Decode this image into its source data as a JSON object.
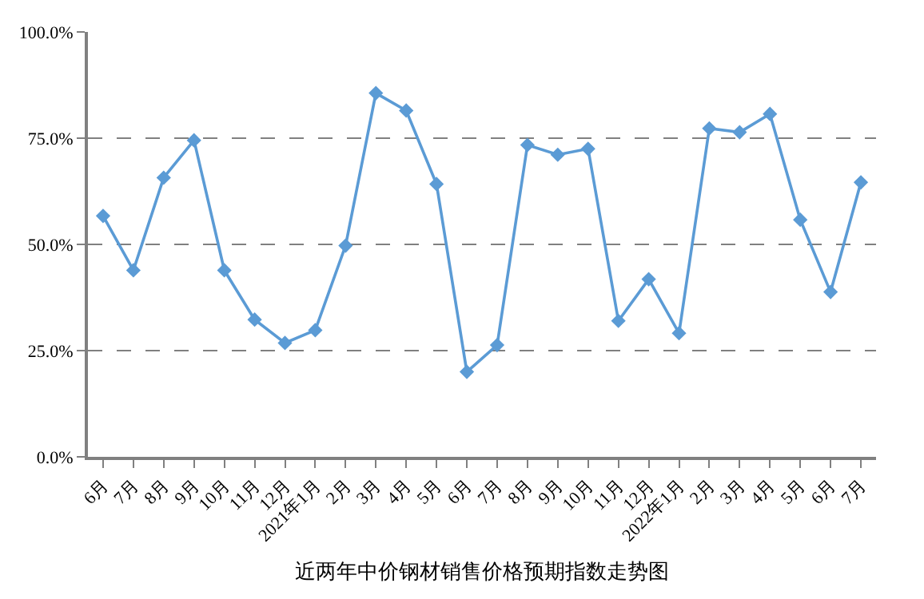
{
  "chart_data": {
    "type": "line",
    "xlabel": "近两年中价钢材销售价格预期指数走势图",
    "categories": [
      "6月",
      "7月",
      "8月",
      "9月",
      "10月",
      "11月",
      "12月",
      "2021年1月",
      "2月",
      "3月",
      "4月",
      "5月",
      "6月",
      "7月",
      "8月",
      "9月",
      "10月",
      "11月",
      "12月",
      "2022年1月",
      "2月",
      "3月",
      "4月",
      "5月",
      "6月",
      "7月"
    ],
    "series": [
      {
        "color": "#5b9bd5",
        "values": [
          56.7,
          43.9,
          65.7,
          74.5,
          43.9,
          32.3,
          26.8,
          29.8,
          49.7,
          85.6,
          81.5,
          64.2,
          20.0,
          26.3,
          73.4,
          71.1,
          72.5,
          32.0,
          41.8,
          29.1,
          77.3,
          76.4,
          80.7,
          55.8,
          38.8,
          64.6
        ]
      }
    ],
    "ylim": [
      0,
      100
    ],
    "yticks": [
      {
        "value": 0,
        "label": "0.0%"
      },
      {
        "value": 25,
        "label": "25.0%"
      },
      {
        "value": 50,
        "label": "50.0%"
      },
      {
        "value": 75,
        "label": "75.0%"
      },
      {
        "value": 100,
        "label": "100.0%"
      }
    ],
    "grid": "y",
    "marker": "diamond",
    "line_style": "solid"
  }
}
